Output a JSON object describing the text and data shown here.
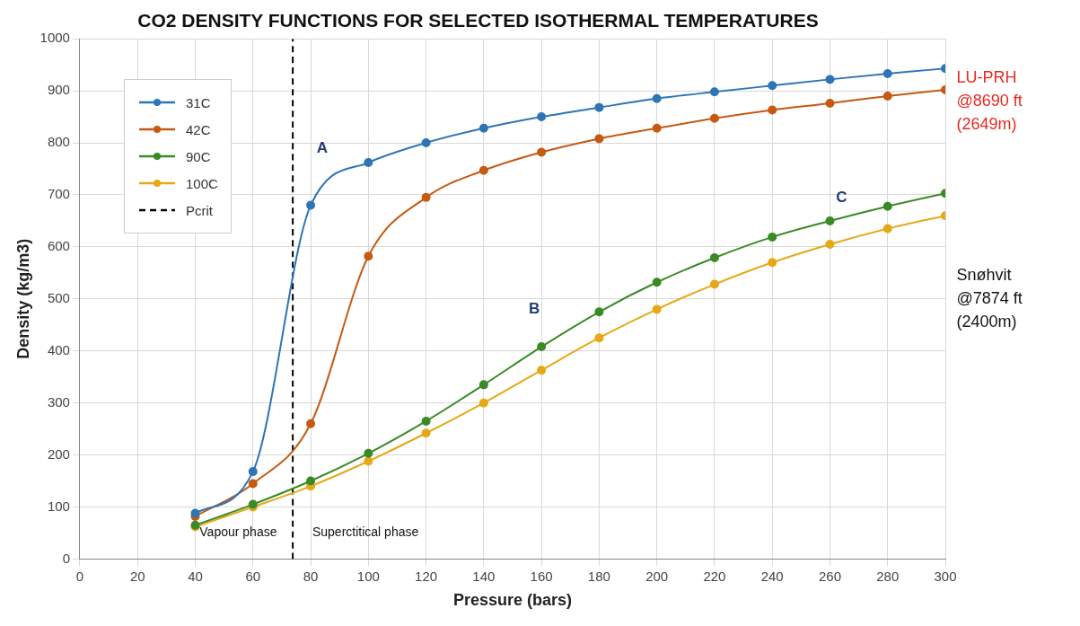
{
  "chart_data": {
    "type": "line",
    "title": "CO2 DENSITY FUNCTIONS FOR SELECTED ISOTHERMAL TEMPERATURES",
    "xlabel": "Pressure (bars)",
    "ylabel": "Density (kg/m3)",
    "x": [
      40,
      60,
      80,
      100,
      120,
      140,
      160,
      180,
      200,
      220,
      240,
      260,
      280,
      300
    ],
    "series": [
      {
        "name": "31C",
        "color": "#2e75b6",
        "values": [
          88,
          168,
          680,
          762,
          800,
          828,
          850,
          868,
          885,
          898,
          910,
          922,
          933,
          943
        ]
      },
      {
        "name": "42C",
        "color": "#c55a11",
        "values": [
          82,
          145,
          260,
          582,
          695,
          747,
          782,
          808,
          828,
          847,
          863,
          876,
          890,
          902
        ]
      },
      {
        "name": "90C",
        "color": "#3a8a26",
        "values": [
          65,
          105,
          150,
          203,
          265,
          335,
          408,
          475,
          532,
          579,
          619,
          650,
          678,
          703
        ]
      },
      {
        "name": "100C",
        "color": "#e6a817",
        "values": [
          62,
          100,
          140,
          188,
          242,
          300,
          363,
          425,
          480,
          528,
          570,
          605,
          635,
          660
        ]
      },
      {
        "name": "Pcrit",
        "color": "#000000",
        "x": [
          73.8,
          73.8
        ],
        "values": [
          0,
          1000
        ],
        "line_style": "dashed",
        "marker": "none"
      }
    ],
    "xlim": [
      0,
      300
    ],
    "xticks": [
      0,
      20,
      40,
      60,
      80,
      100,
      120,
      140,
      160,
      180,
      200,
      220,
      240,
      260,
      280,
      300
    ],
    "ylim": [
      0,
      1000
    ],
    "yticks": [
      0,
      100,
      200,
      300,
      400,
      500,
      600,
      700,
      800,
      900,
      1000
    ],
    "grid": true,
    "legend": "top left",
    "marker": "circle",
    "line_style": "solid",
    "annotations": [
      "A",
      "B",
      "C",
      "Vapour phase",
      "Superctitical phase",
      "LU-PRH\n@8690 ft\n(2649m)",
      "Snøhvit\n@7874 ft\n(2400m)"
    ]
  }
}
